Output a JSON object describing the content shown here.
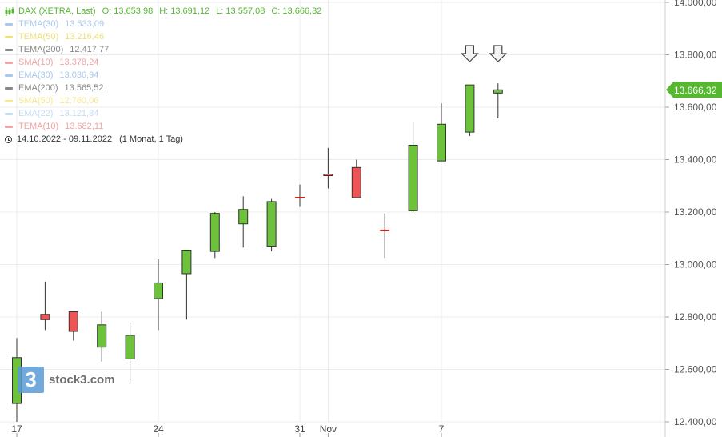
{
  "header": {
    "title": "DAX (XETRA, Last)",
    "open": "O: 13,653,98",
    "high": "H: 13.691,12",
    "low": "L: 13.557,08",
    "close": "C: 13.666,32",
    "color": "#56b831"
  },
  "indicators": [
    {
      "name": "TEMA(30)",
      "value": "13.533,09",
      "color": "#a9c8ef"
    },
    {
      "name": "TEMA(50)",
      "value": "13.216,46",
      "color": "#efe07a"
    },
    {
      "name": "TEMA(200)",
      "value": "12.417,77",
      "color": "#888888"
    },
    {
      "name": "SMA(10)",
      "value": "13.378,24",
      "color": "#f2a3a3"
    },
    {
      "name": "EMA(30)",
      "value": "13.036,94",
      "color": "#a9c8ef"
    },
    {
      "name": "EMA(200)",
      "value": "13.565,52",
      "color": "#888888"
    },
    {
      "name": "SMA(50)",
      "value": "12.760,06",
      "color": "#f5e890"
    },
    {
      "name": "EMA(22)",
      "value": "13.121,84",
      "color": "#c5dcf5"
    },
    {
      "name": "TEMA(10)",
      "value": "13.682,11",
      "color": "#f2a3a3"
    }
  ],
  "date_range": "14.10.2022 - 09.11.2022",
  "period": "(1 Monat, 1 Tag)",
  "logo": {
    "mark": "3",
    "text": "stock3.com"
  },
  "last_price": "13.666,32",
  "colors": {
    "up": "#6cc23a",
    "down": "#ef5555",
    "neutral": "#cc2222",
    "grid": "#ececec",
    "price_tag": "#56b831"
  },
  "chart_data": {
    "type": "candlestick",
    "ylim": [
      12400,
      14000
    ],
    "y_ticks": [
      12400,
      12600,
      12800,
      13000,
      13200,
      13400,
      13600,
      13800,
      14000
    ],
    "y_tick_labels": [
      "12.400,00",
      "12.600,00",
      "12.800,00",
      "13.000,00",
      "13.200,00",
      "13.400,00",
      "13.600,00",
      "13.800,00",
      "14.000,00"
    ],
    "x_ticks": [
      {
        "label": "17",
        "index": 0
      },
      {
        "label": "24",
        "index": 5
      },
      {
        "label": "31",
        "index": 10
      },
      {
        "label": "Nov",
        "index": 11
      },
      {
        "label": "7",
        "index": 15
      }
    ],
    "candles": [
      {
        "o": 12470,
        "h": 12720,
        "l": 12400,
        "c": 12645
      },
      {
        "o": 12810,
        "h": 12935,
        "l": 12750,
        "c": 12790
      },
      {
        "o": 12820,
        "h": 12820,
        "l": 12710,
        "c": 12745
      },
      {
        "o": 12685,
        "h": 12820,
        "l": 12630,
        "c": 12770
      },
      {
        "o": 12640,
        "h": 12780,
        "l": 12550,
        "c": 12730
      },
      {
        "o": 12870,
        "h": 13020,
        "l": 12750,
        "c": 12930
      },
      {
        "o": 12965,
        "h": 13055,
        "l": 12790,
        "c": 13055
      },
      {
        "o": 13050,
        "h": 13200,
        "l": 13025,
        "c": 13195
      },
      {
        "o": 13155,
        "h": 13260,
        "l": 13065,
        "c": 13210
      },
      {
        "o": 13070,
        "h": 13250,
        "l": 13050,
        "c": 13240
      },
      {
        "o": 13255,
        "h": 13305,
        "l": 13220,
        "c": 13255
      },
      {
        "o": 13345,
        "h": 13445,
        "l": 13290,
        "c": 13340
      },
      {
        "o": 13370,
        "h": 13400,
        "l": 13255,
        "c": 13255
      },
      {
        "o": 13130,
        "h": 13195,
        "l": 13025,
        "c": 13130
      },
      {
        "o": 13205,
        "h": 13545,
        "l": 13200,
        "c": 13455
      },
      {
        "o": 13395,
        "h": 13615,
        "l": 13395,
        "c": 13535
      },
      {
        "o": 13505,
        "h": 13685,
        "l": 13490,
        "c": 13685
      },
      {
        "o": 13653.98,
        "h": 13691.12,
        "l": 13557.08,
        "c": 13666.32
      }
    ],
    "signal_arrows": [
      16,
      17
    ]
  }
}
